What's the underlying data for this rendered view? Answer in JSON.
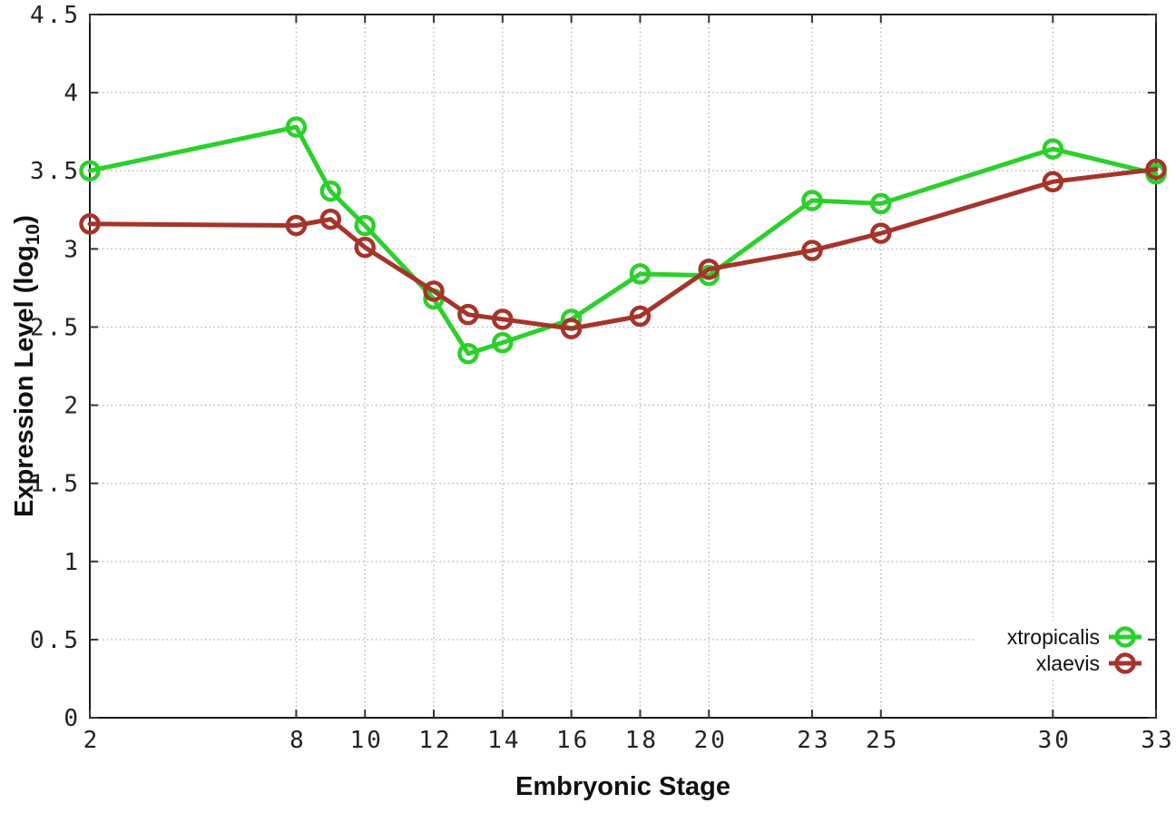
{
  "chart_data": {
    "type": "line",
    "title": "",
    "xlabel": "Embryonic Stage",
    "ylabel": "Expression Level (log10)",
    "ylabel_parts": {
      "pre": "Expression Level (log",
      "sub": "10",
      "post": ")"
    },
    "x": [
      2,
      8,
      9,
      10,
      12,
      13,
      14,
      16,
      18,
      20,
      23,
      25,
      30,
      33
    ],
    "x_tick_labels": [
      "2",
      "8",
      "10",
      "12",
      "14",
      "16",
      "18",
      "20",
      "23",
      "25",
      "30",
      "33"
    ],
    "x_ticks": [
      2,
      8,
      10,
      12,
      14,
      16,
      18,
      20,
      23,
      25,
      30,
      33
    ],
    "y_ticks": [
      0,
      0.5,
      1,
      1.5,
      2,
      2.5,
      3,
      3.5,
      4,
      4.5
    ],
    "y_tick_labels": [
      "0",
      "0.5",
      "1",
      "1.5",
      "2",
      "2.5",
      "3",
      "3.5",
      "4",
      "4.5"
    ],
    "xlim": [
      2,
      33
    ],
    "ylim": [
      0,
      4.5
    ],
    "grid": true,
    "legend_position": "bottom-right",
    "series": [
      {
        "name": "xtropicalis",
        "color": "#2bd02b",
        "values": [
          3.5,
          3.78,
          3.37,
          3.15,
          2.68,
          2.33,
          2.4,
          2.55,
          2.84,
          2.83,
          3.31,
          3.29,
          3.64,
          3.48
        ]
      },
      {
        "name": "xlaevis",
        "color": "#a5342a",
        "values": [
          3.16,
          3.15,
          3.19,
          3.01,
          2.73,
          2.58,
          2.55,
          2.49,
          2.57,
          2.87,
          2.99,
          3.1,
          3.43,
          3.51
        ]
      }
    ]
  }
}
